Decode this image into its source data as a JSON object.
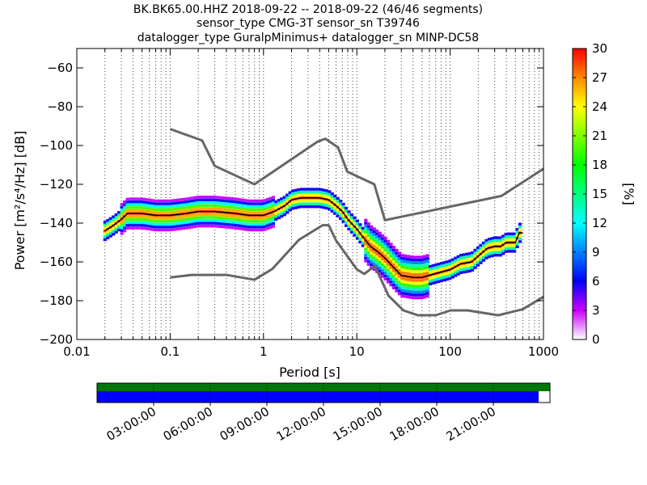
{
  "chart_data": {
    "type": "heatmap",
    "title_lines": [
      "BK.BK65.00.HHZ   2018-09-22 -- 2018-09-22  (46/46 segments)",
      "sensor_type CMG-3T sensor_sn T39746",
      "datalogger_type GuralpMinimus+ datalogger_sn MINP-DC58"
    ],
    "xlabel": "Period [s]",
    "ylabel": "Power [m²/s⁴/Hz] [dB]",
    "x_scale": "log",
    "xlim": [
      0.01,
      1000
    ],
    "ylim": [
      -200,
      -50
    ],
    "x_ticks": [
      {
        "value": 0.01,
        "label": "0.01"
      },
      {
        "value": 0.1,
        "label": "0.1"
      },
      {
        "value": 1,
        "label": "1"
      },
      {
        "value": 10,
        "label": "10"
      },
      {
        "value": 100,
        "label": "100"
      },
      {
        "value": 1000,
        "label": "1000"
      }
    ],
    "y_ticks": [
      {
        "value": -60,
        "label": "−60"
      },
      {
        "value": -80,
        "label": "−80"
      },
      {
        "value": -100,
        "label": "−100"
      },
      {
        "value": -120,
        "label": "−120"
      },
      {
        "value": -140,
        "label": "−140"
      },
      {
        "value": -160,
        "label": "−160"
      },
      {
        "value": -180,
        "label": "−180"
      },
      {
        "value": -200,
        "label": "−200"
      }
    ],
    "grid": "dotted vertical at periods",
    "colorbar": {
      "label": "[%]",
      "range": [
        0,
        30
      ],
      "ticks": [
        {
          "value": 0,
          "label": "0"
        },
        {
          "value": 3,
          "label": "3"
        },
        {
          "value": 6,
          "label": "6"
        },
        {
          "value": 9,
          "label": "9"
        },
        {
          "value": 12,
          "label": "12"
        },
        {
          "value": 15,
          "label": "15"
        },
        {
          "value": 18,
          "label": "18"
        },
        {
          "value": 21,
          "label": "21"
        },
        {
          "value": 24,
          "label": "24"
        },
        {
          "value": 27,
          "label": "27"
        },
        {
          "value": 30,
          "label": "30"
        }
      ]
    },
    "noise_model_high": {
      "color": "#666666",
      "x": [
        0.1,
        0.22,
        0.3,
        0.8,
        3.8,
        4.6,
        6.3,
        7.9,
        15.4,
        20,
        354.8,
        1000
      ],
      "y": [
        -91.5,
        -97.4,
        -110.5,
        -120,
        -98,
        -96.5,
        -101,
        -113.5,
        -120,
        -138.5,
        -126,
        -112
      ]
    },
    "noise_model_low": {
      "color": "#666666",
      "x": [
        0.1,
        0.17,
        0.4,
        0.8,
        1.24,
        2.4,
        4.3,
        5,
        6,
        10,
        12,
        15.6,
        21.9,
        31.6,
        45,
        70,
        101,
        154,
        328,
        600,
        1000
      ],
      "y": [
        -168,
        -166.7,
        -166.7,
        -169.2,
        -163.7,
        -148.6,
        -141.1,
        -141.1,
        -149,
        -163.8,
        -166.2,
        -162.1,
        -177.5,
        -185,
        -187.5,
        -187.5,
        -185,
        -185,
        -187.5,
        -184.4,
        -178
      ]
    },
    "median": {
      "color": "#000000",
      "x": [
        0.02,
        0.025,
        0.03,
        0.035,
        0.05,
        0.07,
        0.1,
        0.15,
        0.2,
        0.3,
        0.5,
        0.7,
        1,
        1.3,
        1.7,
        2,
        2.5,
        3,
        4,
        5,
        6,
        7,
        8,
        10,
        12,
        14,
        17,
        20,
        25,
        30,
        40,
        50,
        70,
        100,
        130,
        170,
        200,
        250,
        300,
        350,
        400,
        500,
        550,
        600
      ],
      "y": [
        -144,
        -141,
        -138,
        -135,
        -135,
        -136,
        -136,
        -135,
        -134,
        -134,
        -135,
        -136,
        -136,
        -134,
        -131,
        -128,
        -127,
        -127,
        -127,
        -128,
        -131,
        -134,
        -138,
        -143,
        -148,
        -152,
        -155,
        -158,
        -163,
        -167,
        -168,
        -168,
        -166,
        -164,
        -161,
        -160,
        -157,
        -153,
        -152,
        -152,
        -150,
        -150,
        -145,
        -145
      ]
    },
    "timeline": {
      "tick_labels": [
        "03:00:00",
        "06:00:00",
        "09:00:00",
        "12:00:00",
        "15:00:00",
        "18:00:00",
        "21:00:00"
      ],
      "top_bar_color": "#007700",
      "bottom_bar_color": "#0000ff",
      "top_coverage": 1.0,
      "bottom_coverage": 0.975
    }
  }
}
